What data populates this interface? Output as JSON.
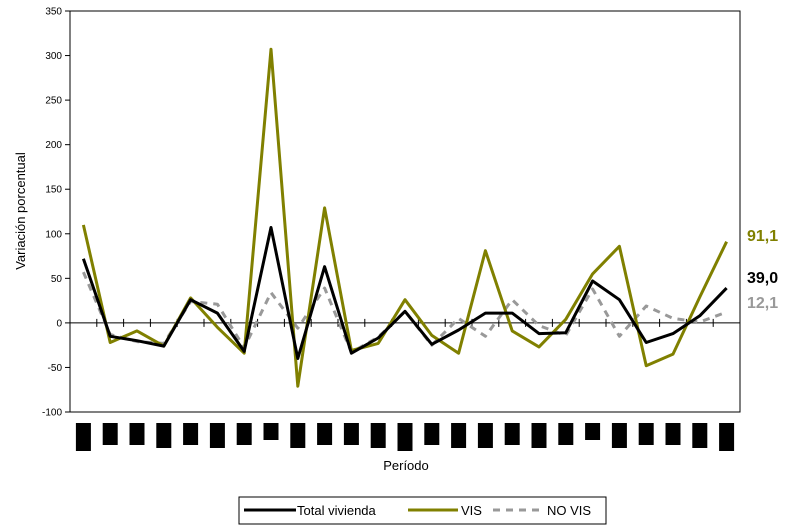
{
  "chart_data": {
    "type": "line",
    "xlabel": "Período",
    "ylabel": "Variación porcentual",
    "ylim": [
      -100,
      350
    ],
    "yticks": [
      -100,
      -50,
      0,
      50,
      100,
      150,
      200,
      250,
      300,
      350
    ],
    "ytick_labels": [
      "-100",
      "-50",
      "0",
      "50",
      "100",
      "150",
      "200",
      "250",
      "300",
      "350"
    ],
    "categories_count": 25,
    "x_tick_labels": "illegible (rendered as solid black blocks)",
    "grid": false,
    "legend_position": "bottom-center",
    "series": [
      {
        "name": "Total vivienda",
        "color": "#000000",
        "style": "solid",
        "values": [
          72,
          -15,
          -20,
          -26,
          26,
          11,
          -32,
          107,
          -40,
          63,
          -34,
          -17,
          13,
          -24,
          -8,
          11,
          11,
          -12,
          -11,
          47,
          26,
          -22,
          -12,
          8,
          39
        ]
      },
      {
        "name": "VIS",
        "color": "#808000",
        "style": "solid",
        "values": [
          110,
          -22,
          -9,
          -26,
          28,
          -5,
          -34,
          307,
          -71,
          129,
          -31,
          -23,
          26,
          -14,
          -34,
          81,
          -9,
          -27,
          4,
          55,
          86,
          -48,
          -35,
          29,
          91.1
        ]
      },
      {
        "name": "NO VIS",
        "color": "#999999",
        "style": "dashed",
        "values": [
          57,
          -13,
          -21,
          -23,
          24,
          21,
          -28,
          34,
          -6,
          39,
          -33,
          -16,
          13,
          -25,
          5,
          -15,
          26,
          -3,
          -14,
          38,
          -15,
          19,
          5,
          1,
          12.1
        ]
      }
    ],
    "end_labels": [
      {
        "text": "91,1",
        "color": "#808000"
      },
      {
        "text": "39,0",
        "color": "#000000"
      },
      {
        "text": "12,1",
        "color": "#999999"
      }
    ],
    "legend": {
      "items": [
        "Total vivienda",
        "VIS",
        "NO VIS"
      ]
    }
  }
}
